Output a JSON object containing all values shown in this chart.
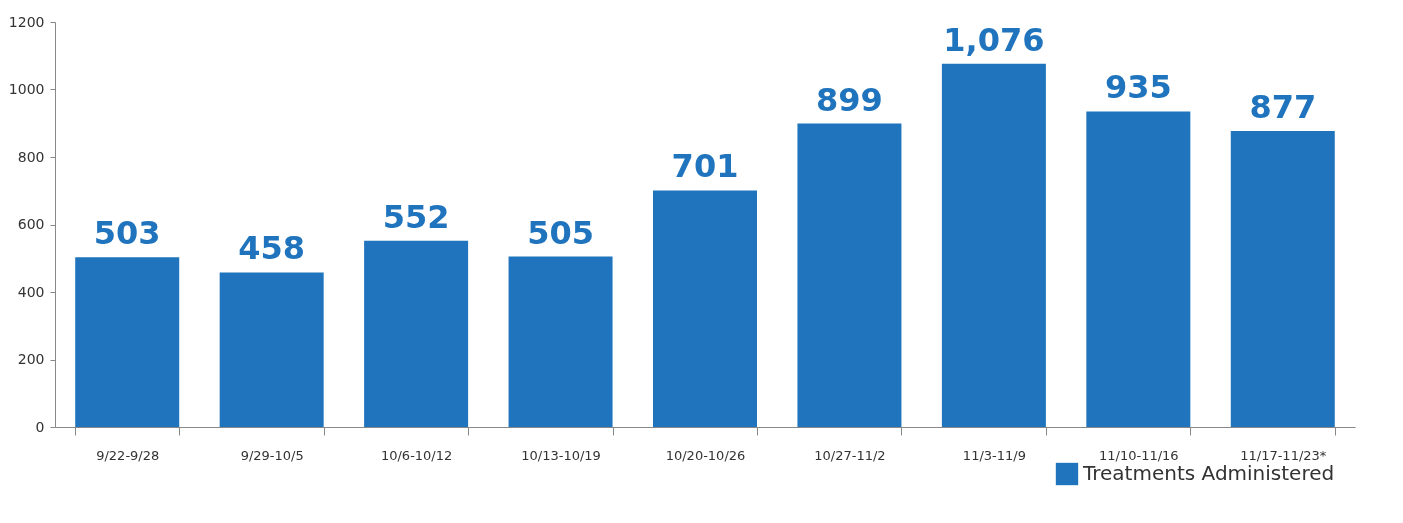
{
  "chart_data": {
    "type": "bar",
    "categories": [
      "9/22-9/28",
      "9/29-10/5",
      "10/6-10/12",
      "10/13-10/19",
      "10/20-10/26",
      "10/27-11/2",
      "11/3-11/9",
      "11/10-11/16",
      "11/17-11/23*"
    ],
    "series": [
      {
        "name": "Treatments Administered",
        "color": "#1f74bd",
        "values": [
          503,
          458,
          552,
          505,
          701,
          899,
          1076,
          935,
          877
        ]
      }
    ],
    "value_labels": [
      "503",
      "458",
      "552",
      "505",
      "701",
      "899",
      "1,076",
      "935",
      "877"
    ],
    "ylim": [
      0,
      1200
    ],
    "yticks": [
      0,
      200,
      400,
      600,
      800,
      1000,
      1200
    ],
    "grid": false,
    "legend": "bottom right"
  }
}
